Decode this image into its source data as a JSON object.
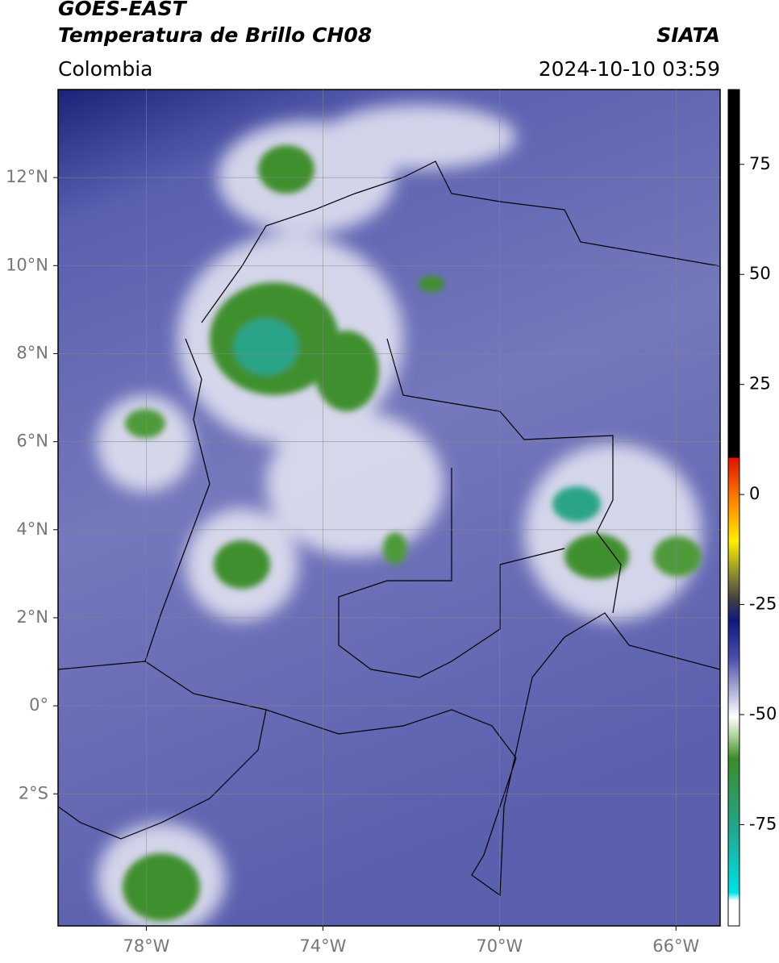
{
  "header": {
    "title": "GOES-EAST",
    "subtitle": "Temperatura de Brillo CH08",
    "source": "SIATA",
    "region": "Colombia",
    "datetime": "2024-10-10 03:59"
  },
  "map": {
    "xlim": [
      -80,
      -65
    ],
    "ylim": [
      -5,
      14
    ],
    "grid": true,
    "xticks": [
      {
        "value": -78,
        "label": "78°W"
      },
      {
        "value": -74,
        "label": "74°W"
      },
      {
        "value": -70,
        "label": "70°W"
      },
      {
        "value": -66,
        "label": "66°W"
      }
    ],
    "yticks": [
      {
        "value": 12,
        "label": "12°N"
      },
      {
        "value": 10,
        "label": "10°N"
      },
      {
        "value": 8,
        "label": "8°N"
      },
      {
        "value": 6,
        "label": "6°N"
      },
      {
        "value": 4,
        "label": "4°N"
      },
      {
        "value": 2,
        "label": "2°N"
      },
      {
        "value": 0,
        "label": "0°"
      },
      {
        "value": -2,
        "label": "2°S"
      }
    ]
  },
  "colorbar": {
    "lim": [
      -98,
      92
    ],
    "ticks": [
      75,
      50,
      25,
      0,
      -25,
      -50,
      -75
    ]
  }
}
